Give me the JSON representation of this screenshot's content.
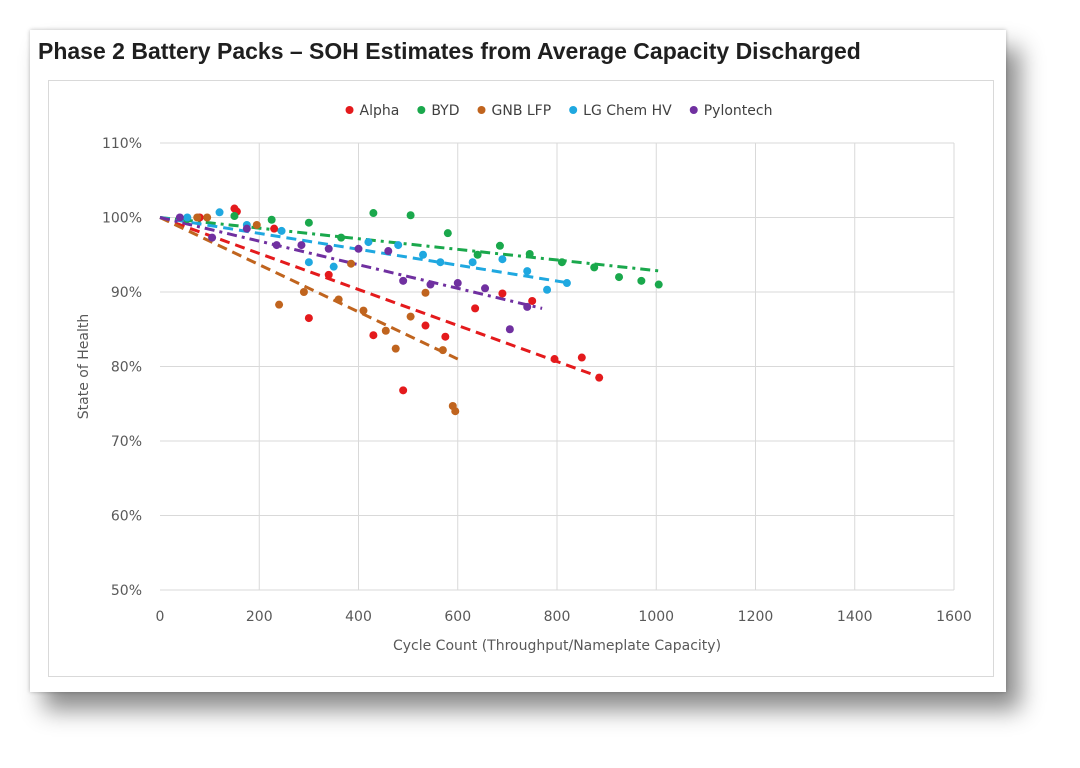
{
  "chart_data": {
    "type": "scatter",
    "title": "Phase 2 Battery Packs – SOH Estimates from Average Capacity Discharged",
    "xlabel": "Cycle Count (Throughput/Nameplate Capacity)",
    "ylabel": "State of Health",
    "xlim": [
      0,
      1600
    ],
    "ylim": [
      0.5,
      1.1
    ],
    "xticks": [
      0,
      200,
      400,
      600,
      800,
      1000,
      1200,
      1400,
      1600
    ],
    "yticks": [
      0.5,
      0.6,
      0.7,
      0.8,
      0.9,
      1.0,
      1.1
    ],
    "ytick_labels": [
      "50%",
      "60%",
      "70%",
      "80%",
      "90%",
      "100%",
      "110%"
    ],
    "grid": "vertical and horizontal",
    "legend_position": "top",
    "series": [
      {
        "name": "Alpha",
        "color": "#e41a1c",
        "trendline": "dashed",
        "points": [
          [
            80,
            1.0
          ],
          [
            150,
            1.012
          ],
          [
            155,
            1.008
          ],
          [
            230,
            0.985
          ],
          [
            300,
            0.865
          ],
          [
            340,
            0.923
          ],
          [
            430,
            0.842
          ],
          [
            490,
            0.768
          ],
          [
            535,
            0.855
          ],
          [
            575,
            0.84
          ],
          [
            635,
            0.878
          ],
          [
            690,
            0.898
          ],
          [
            750,
            0.888
          ],
          [
            795,
            0.81
          ],
          [
            850,
            0.812
          ],
          [
            885,
            0.785
          ]
        ],
        "trend": [
          [
            0,
            1.0
          ],
          [
            890,
            0.785
          ]
        ]
      },
      {
        "name": "BYD",
        "color": "#1aa84c",
        "trendline": "dash-dot",
        "points": [
          [
            55,
            0.998
          ],
          [
            150,
            1.002
          ],
          [
            225,
            0.997
          ],
          [
            300,
            0.993
          ],
          [
            365,
            0.973
          ],
          [
            430,
            1.006
          ],
          [
            505,
            1.003
          ],
          [
            580,
            0.979
          ],
          [
            640,
            0.95
          ],
          [
            685,
            0.962
          ],
          [
            745,
            0.951
          ],
          [
            810,
            0.94
          ],
          [
            875,
            0.933
          ],
          [
            925,
            0.92
          ],
          [
            970,
            0.915
          ],
          [
            1005,
            0.91
          ]
        ],
        "trend": [
          [
            0,
            1.0
          ],
          [
            1010,
            0.928
          ]
        ]
      },
      {
        "name": "GNB LFP",
        "color": "#c0641e",
        "trendline": "dashed",
        "points": [
          [
            75,
            1.0
          ],
          [
            95,
            1.0
          ],
          [
            195,
            0.99
          ],
          [
            240,
            0.883
          ],
          [
            290,
            0.9
          ],
          [
            360,
            0.89
          ],
          [
            385,
            0.938
          ],
          [
            410,
            0.875
          ],
          [
            455,
            0.848
          ],
          [
            475,
            0.824
          ],
          [
            505,
            0.867
          ],
          [
            535,
            0.899
          ],
          [
            570,
            0.822
          ],
          [
            590,
            0.747
          ],
          [
            595,
            0.74
          ]
        ],
        "trend": [
          [
            0,
            1.0
          ],
          [
            600,
            0.81
          ]
        ]
      },
      {
        "name": "LG Chem HV",
        "color": "#1fa8e0",
        "trendline": "dashed",
        "points": [
          [
            55,
            1.0
          ],
          [
            120,
            1.007
          ],
          [
            175,
            0.99
          ],
          [
            245,
            0.982
          ],
          [
            300,
            0.94
          ],
          [
            350,
            0.934
          ],
          [
            420,
            0.967
          ],
          [
            480,
            0.963
          ],
          [
            530,
            0.95
          ],
          [
            565,
            0.94
          ],
          [
            630,
            0.94
          ],
          [
            690,
            0.944
          ],
          [
            740,
            0.928
          ],
          [
            780,
            0.903
          ],
          [
            820,
            0.912
          ]
        ],
        "trend": [
          [
            0,
            1.0
          ],
          [
            825,
            0.912
          ]
        ]
      },
      {
        "name": "Pylontech",
        "color": "#7030a0",
        "trendline": "dash-dot",
        "points": [
          [
            40,
            1.0
          ],
          [
            105,
            0.973
          ],
          [
            175,
            0.985
          ],
          [
            235,
            0.963
          ],
          [
            285,
            0.963
          ],
          [
            340,
            0.958
          ],
          [
            400,
            0.958
          ],
          [
            460,
            0.955
          ],
          [
            490,
            0.915
          ],
          [
            545,
            0.91
          ],
          [
            600,
            0.912
          ],
          [
            655,
            0.905
          ],
          [
            705,
            0.85
          ],
          [
            740,
            0.88
          ]
        ],
        "trend": [
          [
            0,
            1.0
          ],
          [
            770,
            0.878
          ]
        ]
      }
    ]
  }
}
